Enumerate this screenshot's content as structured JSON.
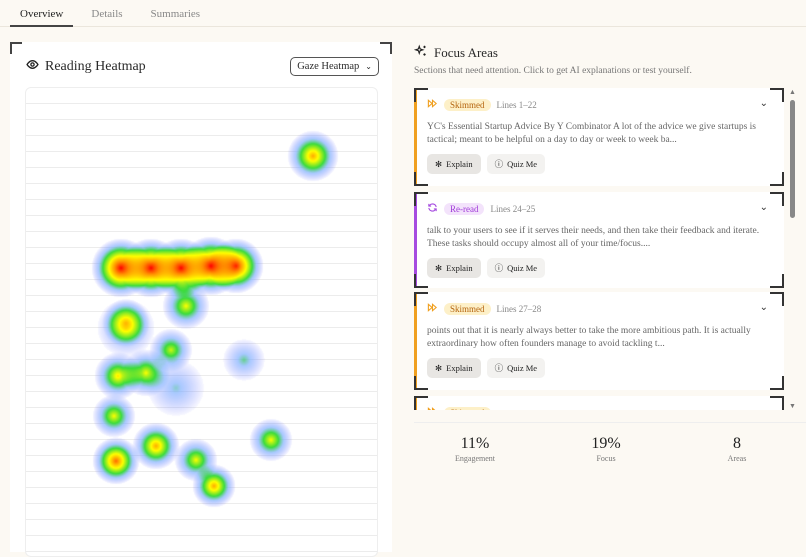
{
  "tabs": [
    {
      "label": "Overview",
      "active": true
    },
    {
      "label": "Details"
    },
    {
      "label": "Summaries"
    }
  ],
  "heatmap": {
    "title": "Reading Heatmap",
    "icon": "eye-icon",
    "mode": "Gaze Heatmap"
  },
  "focus": {
    "title": "Focus Areas",
    "icon": "sparkles-icon",
    "subtitle": "Sections that need attention. Click to get AI explanations or test yourself.",
    "items": [
      {
        "type": "Skimmed",
        "icon": "fast-forward-icon",
        "lines": "Lines 1–22",
        "text": "YC's Essential Startup Advice By Y Combinator A lot of the advice we give startups is tactical; meant to be helpful on a day to day or week to week ba...",
        "explain": "Explain",
        "quiz": "Quiz Me"
      },
      {
        "type": "Re-read",
        "icon": "refresh-icon",
        "lines": "Lines 24–25",
        "text": "talk to your users to see if it serves their needs, and then take their feedback and iterate. These tasks should occupy almost all of your time/focus....",
        "explain": "Explain",
        "quiz": "Quiz Me"
      },
      {
        "type": "Skimmed",
        "icon": "fast-forward-icon",
        "lines": "Lines 27–28",
        "text": "points out that it is nearly always better to take the more ambitious path. It is actually extraordinary how often founders manage to avoid tackling t...",
        "explain": "Explain",
        "quiz": "Quiz Me"
      },
      {
        "type": "Skimmed",
        "icon": "fast-forward-icon"
      }
    ]
  },
  "stats": [
    {
      "value": "11%",
      "label": "Engagement"
    },
    {
      "value": "19%",
      "label": "Focus"
    },
    {
      "value": "8",
      "label": "Areas"
    }
  ],
  "colors": {
    "skimmed": "#f0a020",
    "reread": "#a64ce0"
  }
}
